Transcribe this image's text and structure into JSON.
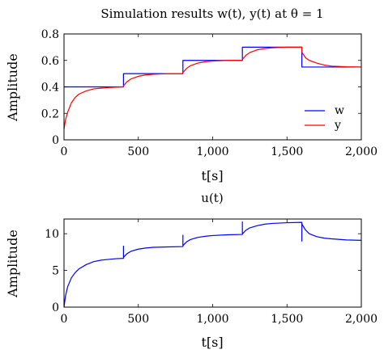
{
  "chart_data": [
    {
      "type": "line",
      "title": "Simulation results w(t), y(t) at θ = 1",
      "xlabel": "t[s]",
      "ylabel": "Amplitude",
      "xlim": [
        0,
        2000
      ],
      "ylim": [
        0,
        0.8
      ],
      "xticks": [
        0,
        500,
        1000,
        1500,
        2000
      ],
      "xtick_labels": [
        "0",
        "500",
        "1,000",
        "1,500",
        "2,000"
      ],
      "yticks": [
        0,
        0.2,
        0.4,
        0.6,
        0.8
      ],
      "ytick_labels": [
        "0",
        "0.2",
        "0.4",
        "0.6",
        "0.8"
      ],
      "grid": false,
      "legend_position": "bottom-right",
      "series": [
        {
          "name": "w",
          "color": "#0000ff",
          "style": "step",
          "x": [
            0,
            400,
            400,
            800,
            800,
            1200,
            1200,
            1600,
            1600,
            2000
          ],
          "y": [
            0.4,
            0.4,
            0.5,
            0.5,
            0.6,
            0.6,
            0.7,
            0.7,
            0.55,
            0.55
          ]
        },
        {
          "name": "y",
          "color": "#ff0000",
          "style": "line",
          "x": [
            0,
            10,
            25,
            50,
            75,
            100,
            150,
            200,
            250,
            300,
            400,
            401,
            425,
            450,
            500,
            550,
            600,
            700,
            800,
            801,
            825,
            850,
            900,
            950,
            1000,
            1100,
            1200,
            1201,
            1225,
            1250,
            1300,
            1350,
            1400,
            1500,
            1600,
            1601,
            1625,
            1650,
            1700,
            1750,
            1800,
            1900,
            2000
          ],
          "y": [
            0.08,
            0.15,
            0.21,
            0.28,
            0.32,
            0.345,
            0.37,
            0.385,
            0.39,
            0.395,
            0.4,
            0.41,
            0.44,
            0.46,
            0.48,
            0.49,
            0.495,
            0.5,
            0.5,
            0.51,
            0.54,
            0.56,
            0.58,
            0.59,
            0.595,
            0.6,
            0.6,
            0.61,
            0.64,
            0.66,
            0.68,
            0.69,
            0.695,
            0.7,
            0.7,
            0.66,
            0.62,
            0.6,
            0.58,
            0.565,
            0.557,
            0.552,
            0.55
          ]
        }
      ]
    },
    {
      "type": "line",
      "title": "u(t)",
      "xlabel": "t[s]",
      "ylabel": "Amplitude",
      "xlim": [
        0,
        2000
      ],
      "ylim": [
        0,
        12
      ],
      "xticks": [
        0,
        500,
        1000,
        1500,
        2000
      ],
      "xtick_labels": [
        "0",
        "500",
        "1,000",
        "1,500",
        "2,000"
      ],
      "yticks": [
        0,
        5,
        10
      ],
      "ytick_labels": [
        "0",
        "5",
        "10"
      ],
      "grid": false,
      "series": [
        {
          "color": "#0000ff",
          "style": "line",
          "x": [
            0,
            10,
            25,
            50,
            75,
            100,
            150,
            200,
            250,
            300,
            350,
            400,
            400,
            400,
            401,
            425,
            450,
            500,
            550,
            600,
            700,
            800,
            800,
            800,
            801,
            825,
            850,
            900,
            950,
            1000,
            1100,
            1200,
            1200,
            1200,
            1201,
            1225,
            1250,
            1300,
            1350,
            1400,
            1500,
            1600,
            1600,
            1600,
            1601,
            1625,
            1650,
            1700,
            1750,
            1800,
            1900,
            2000
          ],
          "y": [
            0,
            1.5,
            2.8,
            4.0,
            4.7,
            5.2,
            5.8,
            6.2,
            6.4,
            6.5,
            6.6,
            6.65,
            8.3,
            6.65,
            6.8,
            7.3,
            7.6,
            7.9,
            8.05,
            8.15,
            8.2,
            8.25,
            9.8,
            8.25,
            8.4,
            8.9,
            9.2,
            9.5,
            9.65,
            9.75,
            9.85,
            9.9,
            11.6,
            9.9,
            10.0,
            10.5,
            10.8,
            11.1,
            11.3,
            11.4,
            11.5,
            11.55,
            9.0,
            11.55,
            11.3,
            10.5,
            10.0,
            9.6,
            9.4,
            9.3,
            9.15,
            9.1
          ]
        }
      ]
    }
  ]
}
